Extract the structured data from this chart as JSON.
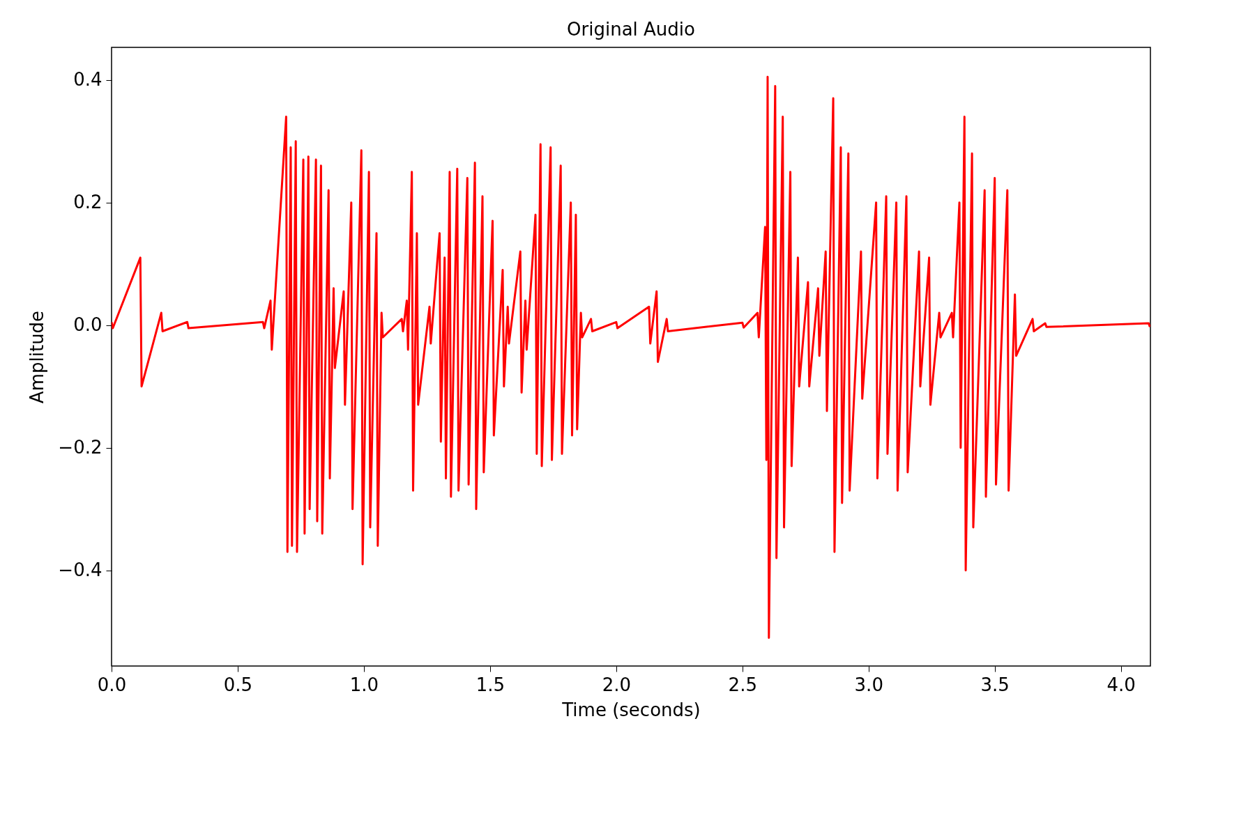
{
  "chart_data": {
    "type": "line",
    "title": "Original Audio",
    "xlabel": "Time (seconds)",
    "ylabel": "Amplitude",
    "xlim": [
      0,
      4.117
    ],
    "ylim": [
      -0.556,
      0.453
    ],
    "xticks": [
      {
        "value": 0,
        "label": "0.0"
      },
      {
        "value": 0.5,
        "label": "0.5"
      },
      {
        "value": 1,
        "label": "1.0"
      },
      {
        "value": 1.5,
        "label": "1.5"
      },
      {
        "value": 2,
        "label": "2.0"
      },
      {
        "value": 2.5,
        "label": "2.5"
      },
      {
        "value": 3,
        "label": "3.0"
      },
      {
        "value": 3.5,
        "label": "3.5"
      },
      {
        "value": 4,
        "label": "4.0"
      }
    ],
    "yticks": [
      {
        "value": -0.4,
        "label": "−0.4"
      },
      {
        "value": -0.2,
        "label": "−0.2"
      },
      {
        "value": 0,
        "label": "0.0"
      },
      {
        "value": 0.2,
        "label": "0.2"
      },
      {
        "value": 0.4,
        "label": "0.4"
      }
    ],
    "grid": false,
    "marker": "none",
    "line_style": "solid",
    "series": [
      {
        "color": "#ff0000",
        "x": [
          0.0,
          0.005,
          0.114,
          0.119,
          0.197,
          0.202,
          0.3,
          0.305,
          0.6,
          0.605,
          0.63,
          0.635,
          0.692,
          0.697,
          0.71,
          0.715,
          0.73,
          0.735,
          0.76,
          0.765,
          0.78,
          0.785,
          0.81,
          0.815,
          0.83,
          0.835,
          0.86,
          0.865,
          0.88,
          0.885,
          0.92,
          0.925,
          0.95,
          0.955,
          0.99,
          0.995,
          1.02,
          1.025,
          1.05,
          1.055,
          1.07,
          1.075,
          1.15,
          1.155,
          1.17,
          1.175,
          1.19,
          1.195,
          1.21,
          1.215,
          1.26,
          1.265,
          1.3,
          1.305,
          1.32,
          1.325,
          1.34,
          1.345,
          1.37,
          1.375,
          1.41,
          1.415,
          1.44,
          1.445,
          1.47,
          1.475,
          1.51,
          1.515,
          1.55,
          1.555,
          1.57,
          1.575,
          1.62,
          1.625,
          1.64,
          1.645,
          1.68,
          1.685,
          1.7,
          1.705,
          1.74,
          1.745,
          1.78,
          1.785,
          1.82,
          1.825,
          1.84,
          1.845,
          1.86,
          1.865,
          1.9,
          1.905,
          2.0,
          2.005,
          2.13,
          2.135,
          2.16,
          2.165,
          2.2,
          2.205,
          2.5,
          2.505,
          2.56,
          2.565,
          2.59,
          2.595,
          2.6,
          2.605,
          2.63,
          2.635,
          2.66,
          2.665,
          2.69,
          2.695,
          2.72,
          2.725,
          2.76,
          2.765,
          2.8,
          2.805,
          2.83,
          2.835,
          2.86,
          2.865,
          2.89,
          2.895,
          2.92,
          2.925,
          2.97,
          2.975,
          3.03,
          3.035,
          3.07,
          3.075,
          3.11,
          3.115,
          3.15,
          3.155,
          3.2,
          3.205,
          3.24,
          3.245,
          3.28,
          3.285,
          3.33,
          3.335,
          3.36,
          3.365,
          3.38,
          3.385,
          3.41,
          3.415,
          3.46,
          3.465,
          3.5,
          3.505,
          3.55,
          3.555,
          3.58,
          3.585,
          3.65,
          3.655,
          3.7,
          3.705,
          4.11,
          4.115
        ],
        "values": [
          0.005,
          -0.005,
          0.11,
          -0.1,
          0.02,
          -0.01,
          0.005,
          -0.005,
          0.005,
          -0.005,
          0.04,
          -0.04,
          0.34,
          -0.37,
          0.29,
          -0.36,
          0.3,
          -0.37,
          0.27,
          -0.34,
          0.275,
          -0.3,
          0.27,
          -0.32,
          0.26,
          -0.34,
          0.22,
          -0.25,
          0.06,
          -0.07,
          0.055,
          -0.13,
          0.2,
          -0.3,
          0.285,
          -0.39,
          0.25,
          -0.33,
          0.15,
          -0.36,
          0.02,
          -0.02,
          0.01,
          -0.01,
          0.04,
          -0.04,
          0.25,
          -0.27,
          0.15,
          -0.13,
          0.03,
          -0.03,
          0.15,
          -0.19,
          0.11,
          -0.25,
          0.25,
          -0.28,
          0.255,
          -0.27,
          0.24,
          -0.26,
          0.265,
          -0.3,
          0.21,
          -0.24,
          0.17,
          -0.18,
          0.09,
          -0.1,
          0.03,
          -0.03,
          0.12,
          -0.11,
          0.04,
          -0.04,
          0.18,
          -0.21,
          0.295,
          -0.23,
          0.29,
          -0.22,
          0.26,
          -0.21,
          0.2,
          -0.18,
          0.18,
          -0.17,
          0.02,
          -0.02,
          0.01,
          -0.01,
          0.005,
          -0.005,
          0.03,
          -0.03,
          0.055,
          -0.06,
          0.01,
          -0.01,
          0.004,
          -0.004,
          0.02,
          -0.02,
          0.16,
          -0.22,
          0.405,
          -0.51,
          0.39,
          -0.38,
          0.34,
          -0.33,
          0.25,
          -0.23,
          0.11,
          -0.1,
          0.07,
          -0.1,
          0.06,
          -0.05,
          0.12,
          -0.14,
          0.37,
          -0.37,
          0.29,
          -0.29,
          0.28,
          -0.27,
          0.12,
          -0.12,
          0.2,
          -0.25,
          0.21,
          -0.21,
          0.2,
          -0.27,
          0.21,
          -0.24,
          0.12,
          -0.1,
          0.11,
          -0.13,
          0.02,
          -0.02,
          0.02,
          -0.02,
          0.2,
          -0.2,
          0.34,
          -0.4,
          0.28,
          -0.33,
          0.22,
          -0.28,
          0.24,
          -0.26,
          0.22,
          -0.27,
          0.05,
          -0.05,
          0.01,
          -0.01,
          0.003,
          -0.003,
          0.003,
          -0.003
        ]
      }
    ]
  }
}
